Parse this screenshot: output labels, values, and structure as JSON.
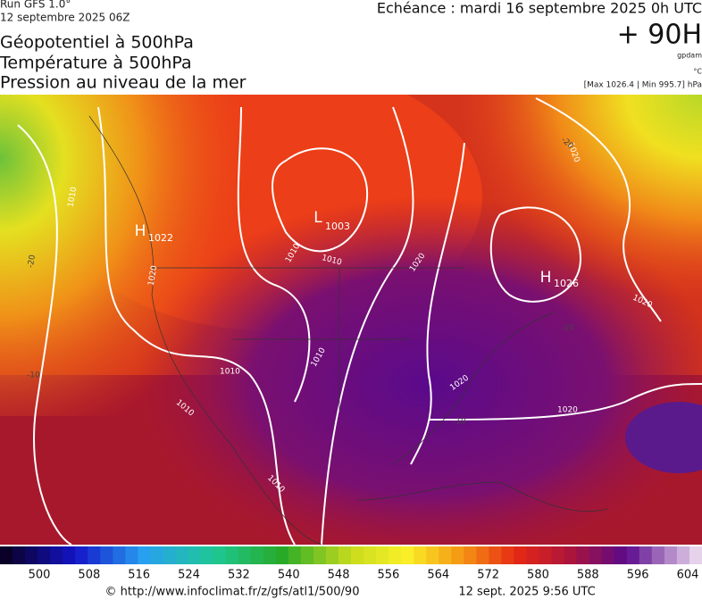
{
  "header": {
    "run": "Run GFS 1.0°",
    "run_date": "12 septembre 2025 06Z",
    "titles": [
      "Géopotentiel à 500hPa",
      "Température à 500hPa",
      "Pression au niveau de la mer"
    ],
    "valid": "Echéance : mardi 16 septembre 2025 0h UTC",
    "lead": "+ 90H",
    "unit_geo": "gpdam",
    "unit_temp": "°C",
    "range": "[Max 1026.4 | Min 995.7] hPa"
  },
  "map": {
    "centers": [
      {
        "symbol": "H",
        "value": 1022
      },
      {
        "symbol": "L",
        "value": 1003
      },
      {
        "symbol": "H",
        "value": 1026
      }
    ],
    "isobar_labels": [
      1010,
      1020,
      1010,
      1010,
      1020,
      1010,
      1010,
      1010,
      1020,
      1020,
      1020,
      1010,
      1020
    ],
    "isotherm_labels": [
      -20,
      -10,
      -10,
      -10,
      -20
    ]
  },
  "scale": {
    "ticks": [
      500,
      508,
      516,
      524,
      532,
      540,
      548,
      556,
      564,
      572,
      580,
      588,
      596,
      604
    ]
  },
  "footer": {
    "source": "© http://www.infoclimat.fr/z/gfs/atl1/500/90",
    "timestamp": "12 sept. 2025  9:56 UTC"
  }
}
